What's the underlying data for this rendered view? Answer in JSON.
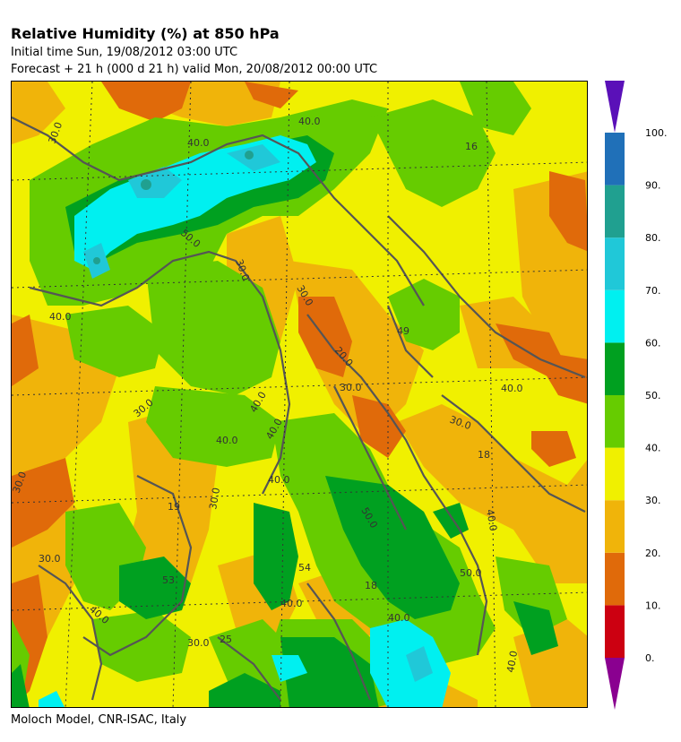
{
  "header": {
    "title": "Relative Humidity (%) at 850 hPa",
    "initial_time": "Initial time  Sun, 19/08/2012  03:00 UTC",
    "forecast": "Forecast  +  21 h  (000 d 21 h)  valid Mon, 20/08/2012 00:00 UTC"
  },
  "footer": {
    "credit": "Moloch Model, CNR-ISAC, Italy"
  },
  "legend": {
    "levels": [
      "0.",
      "10.",
      "20.",
      "30.",
      "40.",
      "50.",
      "60.",
      "70.",
      "80.",
      "90.",
      "100."
    ],
    "colors": [
      "#cc0011",
      "#e06a0a",
      "#f0b40a",
      "#f0f000",
      "#66cc00",
      "#00a020",
      "#00f0f0",
      "#20c8d8",
      "#20a090",
      "#2070b8"
    ],
    "under_color": "#8a0090",
    "over_color": "#5a10b8"
  },
  "map": {
    "contour_labels": [
      "40.0",
      "30.0",
      "40.0",
      "16",
      "30.0",
      "50.0",
      "40.0",
      "30.0",
      "49",
      "40.0",
      "30.0",
      "30.0",
      "20.0",
      "30.0",
      "40.0",
      "40.0",
      "40.0",
      "18",
      "30.0",
      "50.0",
      "40.0",
      "40.0",
      "30.0",
      "19",
      "54",
      "53",
      "30.0",
      "18",
      "40.0",
      "25",
      "30.0",
      "40.0",
      "50.0",
      "40.0",
      "40.0"
    ]
  }
}
